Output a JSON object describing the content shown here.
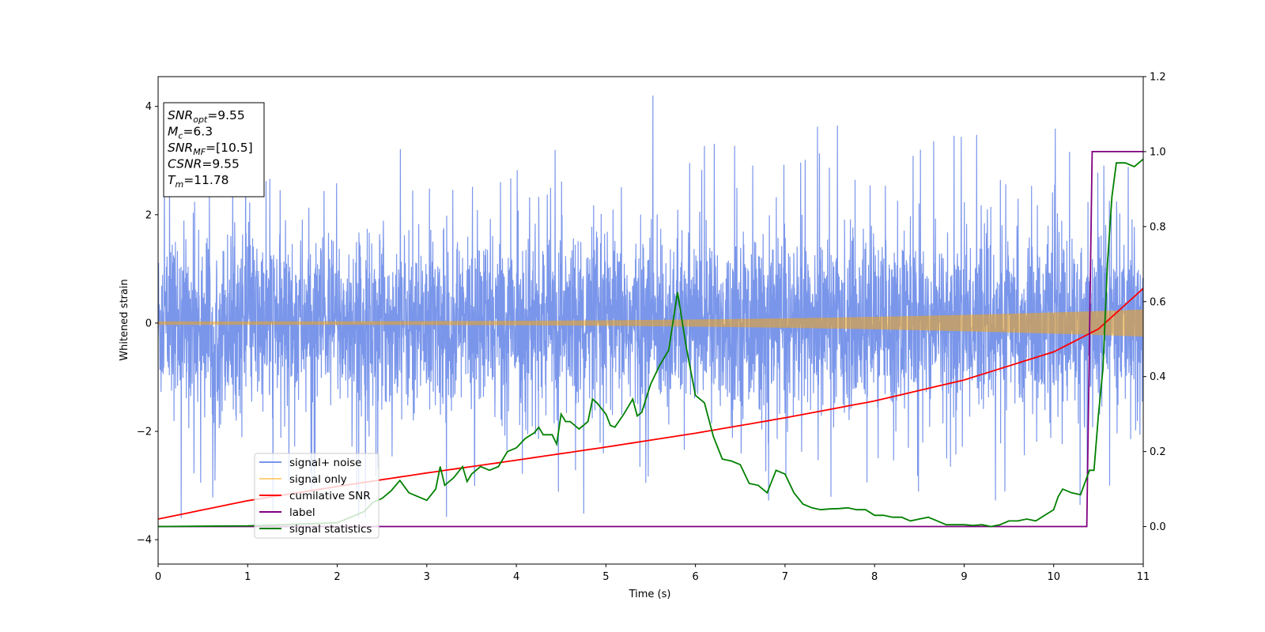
{
  "chart_data": {
    "type": "line",
    "xlabel": "Time (s)",
    "ylabel": "Whitened strain",
    "xlim": [
      0,
      11
    ],
    "ylim_left": [
      -4.45,
      4.55
    ],
    "ylim_right": [
      -0.1,
      1.2
    ],
    "x_ticks": [
      "0",
      "1",
      "2",
      "3",
      "4",
      "5",
      "6",
      "7",
      "8",
      "9",
      "10",
      "11"
    ],
    "y_ticks_left": [
      "−4",
      "−2",
      "0",
      "2",
      "4"
    ],
    "y_ticks_right": [
      "0.0",
      "0.2",
      "0.4",
      "0.6",
      "0.8",
      "1.0",
      "1.2"
    ],
    "grid": false,
    "legend_position": "lower-left",
    "annotation": {
      "lines": [
        {
          "sym": "SNR",
          "sub": "opt",
          "val": "=9.55"
        },
        {
          "sym": "M",
          "sub": "c",
          "val": "=6.3"
        },
        {
          "sym": "SNR",
          "sub": "MF",
          "val": "=[10.5]"
        },
        {
          "sym": "CSNR",
          "sub": "",
          "val": "=9.55"
        },
        {
          "sym": "T",
          "sub": "m",
          "val": "=11.78"
        }
      ]
    },
    "series": [
      {
        "name": "signal+ noise",
        "color": "#4169e1",
        "axis": "left",
        "kind": "noise",
        "typical_amplitude": 2.0,
        "peak_amplitude": 4.2
      },
      {
        "name": "signal only",
        "color": "#ffa500",
        "axis": "left",
        "kind": "chirp",
        "amplitude_start": 0.03,
        "amplitude_end": 0.25
      },
      {
        "name": "cumilative SNR",
        "color": "#ff0000",
        "axis": "right",
        "x": [
          0,
          1,
          2,
          3,
          4,
          5,
          6,
          7,
          8,
          9,
          10,
          10.5,
          11
        ],
        "y": [
          0.02,
          0.069,
          0.107,
          0.143,
          0.177,
          0.212,
          0.249,
          0.29,
          0.335,
          0.391,
          0.466,
          0.527,
          0.635
        ]
      },
      {
        "name": "label",
        "color": "#800080",
        "axis": "right",
        "x": [
          0,
          10.37,
          10.43,
          11
        ],
        "y": [
          0.0,
          0.0,
          1.0,
          1.0
        ]
      },
      {
        "name": "signal statistics",
        "color": "#008000",
        "axis": "right",
        "x": [
          0,
          1,
          2,
          2.3,
          2.4,
          2.5,
          2.6,
          2.7,
          2.8,
          2.9,
          3.0,
          3.1,
          3.15,
          3.2,
          3.3,
          3.4,
          3.45,
          3.5,
          3.6,
          3.7,
          3.8,
          3.9,
          4.0,
          4.1,
          4.2,
          4.25,
          4.3,
          4.4,
          4.45,
          4.5,
          4.55,
          4.6,
          4.7,
          4.8,
          4.85,
          4.9,
          5.0,
          5.05,
          5.1,
          5.2,
          5.3,
          5.35,
          5.4,
          5.5,
          5.6,
          5.7,
          5.8,
          5.85,
          5.9,
          6.0,
          6.1,
          6.2,
          6.3,
          6.4,
          6.5,
          6.6,
          6.7,
          6.8,
          6.9,
          6.95,
          7.0,
          7.1,
          7.2,
          7.3,
          7.4,
          7.5,
          7.6,
          7.7,
          7.8,
          7.9,
          8.0,
          8.1,
          8.2,
          8.3,
          8.4,
          8.5,
          8.6,
          8.7,
          8.8,
          8.9,
          9.0,
          9.1,
          9.2,
          9.3,
          9.4,
          9.5,
          9.6,
          9.7,
          9.8,
          9.9,
          10.0,
          10.05,
          10.1,
          10.2,
          10.3,
          10.4,
          10.45,
          10.5,
          10.55,
          10.6,
          10.65,
          10.7,
          10.8,
          10.9,
          11.0
        ],
        "y": [
          0.0,
          0.002,
          0.01,
          0.04,
          0.065,
          0.075,
          0.095,
          0.123,
          0.09,
          0.08,
          0.07,
          0.1,
          0.16,
          0.11,
          0.13,
          0.16,
          0.12,
          0.14,
          0.16,
          0.15,
          0.16,
          0.2,
          0.21,
          0.235,
          0.25,
          0.265,
          0.245,
          0.245,
          0.22,
          0.3,
          0.28,
          0.28,
          0.26,
          0.28,
          0.34,
          0.33,
          0.3,
          0.27,
          0.265,
          0.3,
          0.34,
          0.295,
          0.305,
          0.38,
          0.43,
          0.47,
          0.625,
          0.55,
          0.475,
          0.35,
          0.33,
          0.24,
          0.18,
          0.175,
          0.165,
          0.115,
          0.11,
          0.09,
          0.15,
          0.145,
          0.14,
          0.09,
          0.06,
          0.05,
          0.045,
          0.047,
          0.048,
          0.05,
          0.045,
          0.045,
          0.03,
          0.03,
          0.025,
          0.025,
          0.015,
          0.02,
          0.025,
          0.015,
          0.005,
          0.005,
          0.005,
          0.003,
          0.005,
          0.0,
          0.005,
          0.015,
          0.015,
          0.02,
          0.015,
          0.03,
          0.045,
          0.08,
          0.1,
          0.09,
          0.085,
          0.15,
          0.15,
          0.3,
          0.42,
          0.7,
          0.88,
          0.97,
          0.97,
          0.96,
          0.98
        ]
      }
    ]
  }
}
